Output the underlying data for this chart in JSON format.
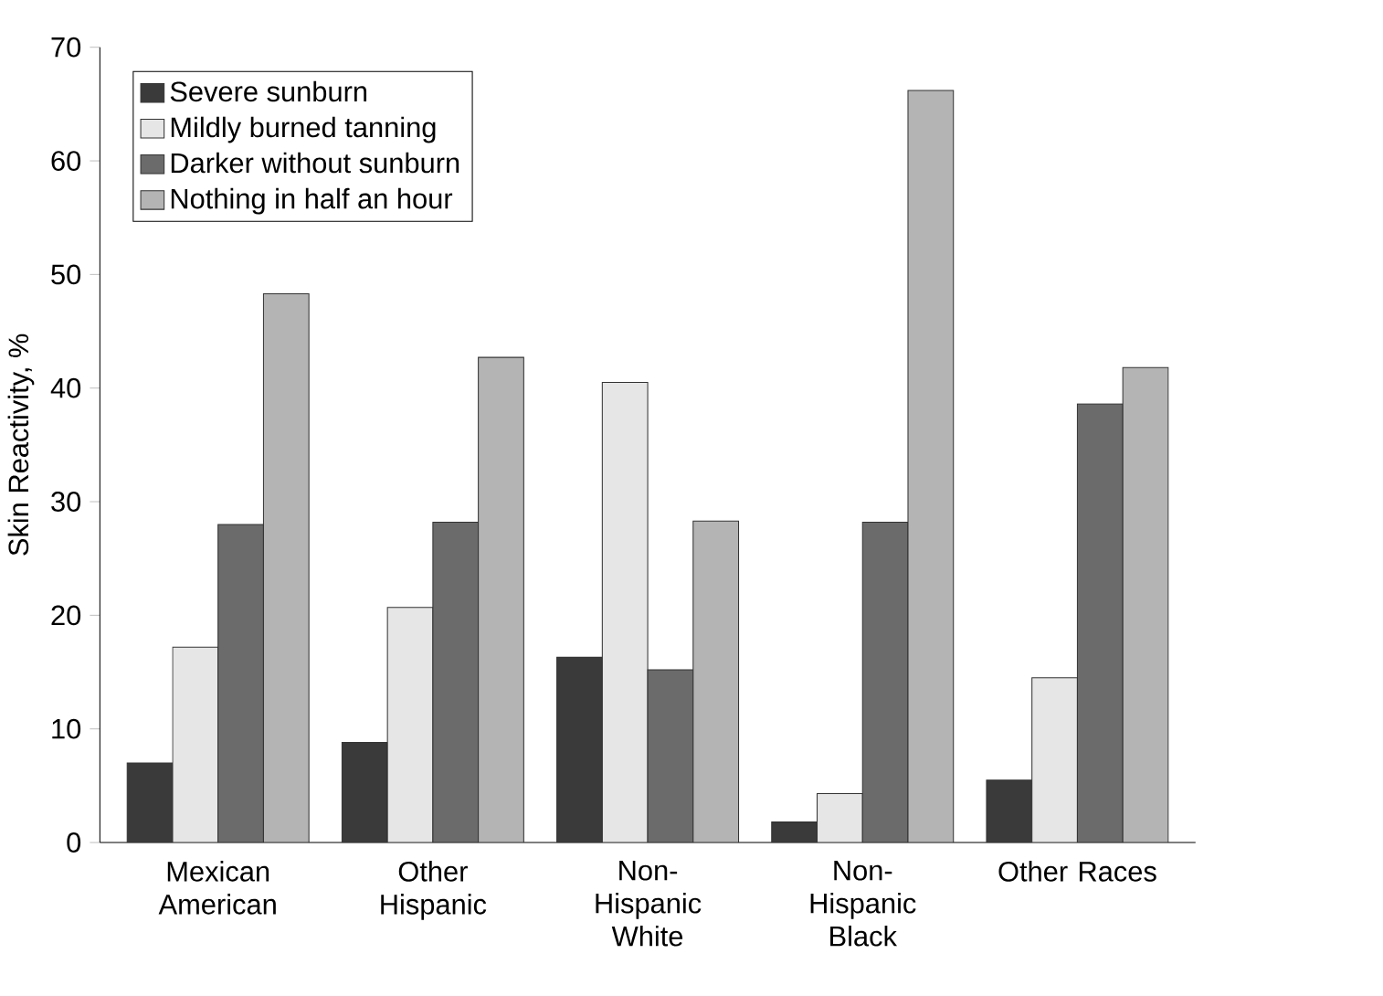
{
  "chart_data": {
    "type": "bar",
    "ylabel": "Skin Reactivity, %",
    "categories": [
      "Mexican American",
      "Other Hispanic",
      "Non-Hispanic White",
      "Non-Hispanic Black",
      "Other Races"
    ],
    "series": [
      {
        "name": "Severe sunburn",
        "color": "#3a3a3a",
        "values": [
          7.0,
          8.8,
          16.3,
          1.8,
          5.5
        ]
      },
      {
        "name": "Mildly burned tanning",
        "color": "#e6e6e6",
        "values": [
          17.2,
          20.7,
          40.5,
          4.3,
          14.5
        ]
      },
      {
        "name": "Darker without sunburn",
        "color": "#6b6b6b",
        "values": [
          28.0,
          28.2,
          15.2,
          28.2,
          38.6
        ]
      },
      {
        "name": "Nothing in half an hour",
        "color": "#b4b4b4",
        "values": [
          48.3,
          42.7,
          28.3,
          66.2,
          41.8
        ]
      }
    ],
    "ylim": [
      0,
      70
    ],
    "yticks": [
      0,
      10,
      20,
      30,
      40,
      50,
      60,
      70
    ],
    "legend": "top left"
  }
}
